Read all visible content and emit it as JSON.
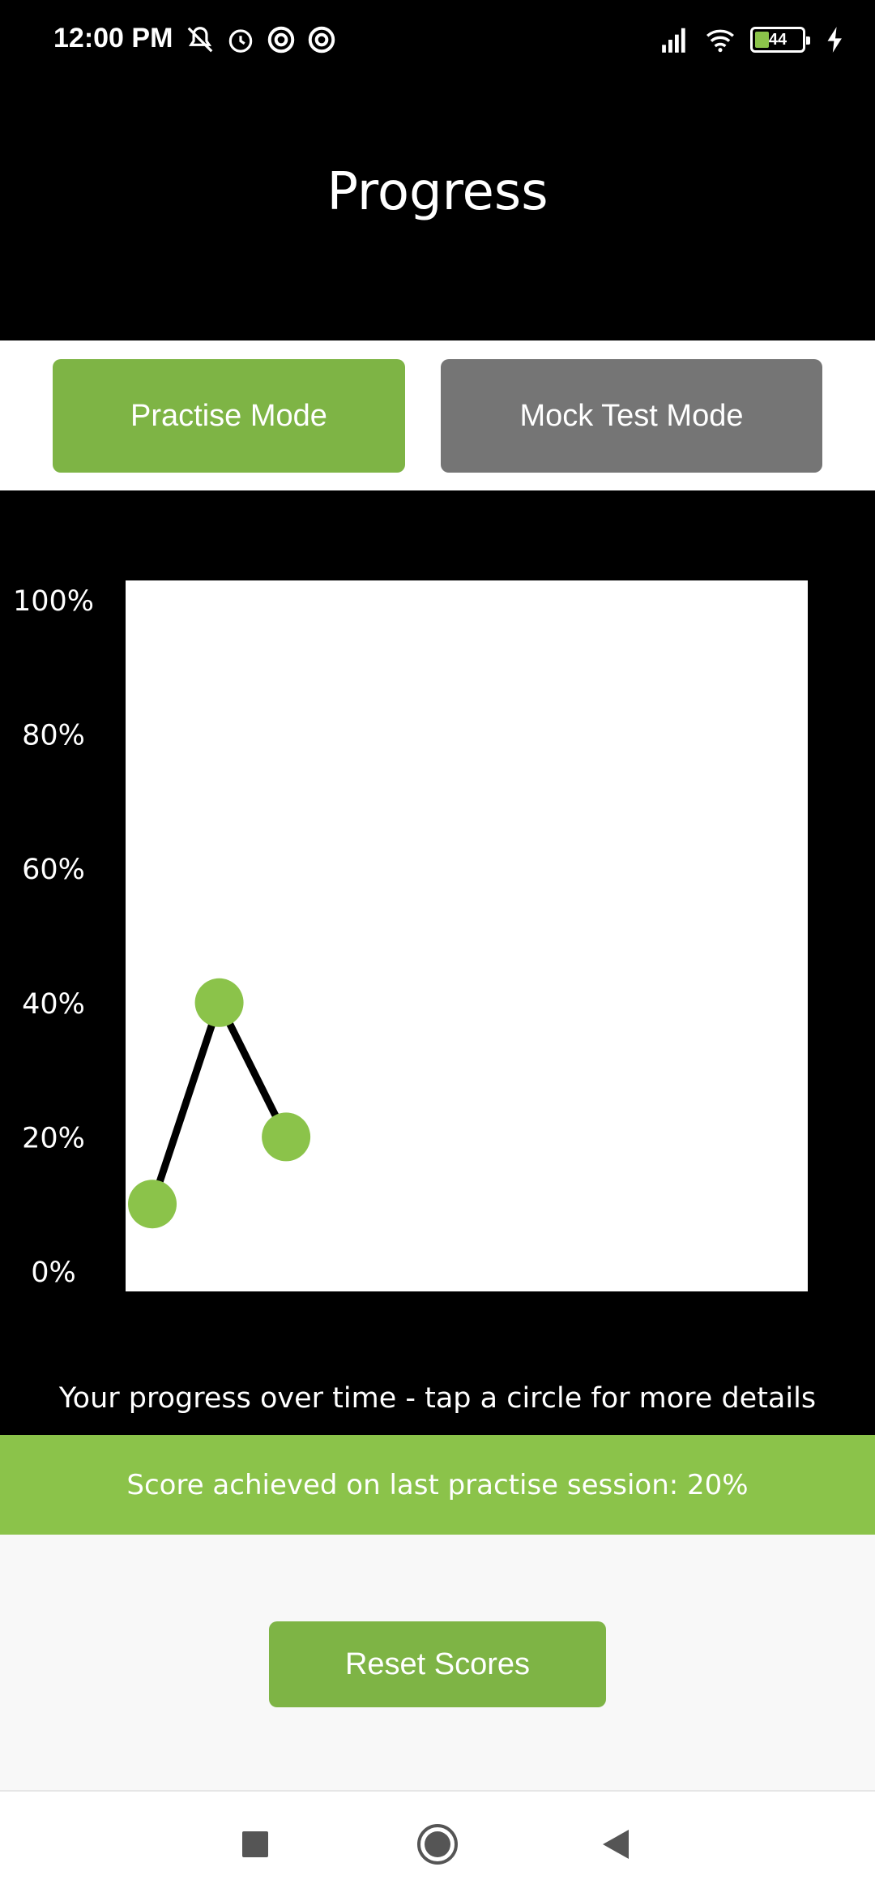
{
  "status_bar": {
    "time": "12:00 PM",
    "battery_level": "44",
    "icons_left": [
      "mute-bell-icon",
      "alarm-icon",
      "sync-icon",
      "sync-icon"
    ],
    "icons_right": [
      "signal-icon",
      "wifi-icon",
      "battery-icon",
      "charging-icon"
    ]
  },
  "header": {
    "title": "Progress"
  },
  "modes": {
    "practise_label": "Practise Mode",
    "mock_label": "Mock Test Mode",
    "selected": "Practise Mode"
  },
  "chart_data": {
    "type": "line",
    "x": [
      1,
      2,
      3
    ],
    "values": [
      10,
      40,
      20
    ],
    "ylim": [
      0,
      100
    ],
    "ytick_labels": [
      "100%",
      "80%",
      "60%",
      "40%",
      "20%",
      "0%"
    ],
    "yticks": [
      100,
      80,
      60,
      40,
      20,
      0
    ],
    "xlim": [
      0.6,
      10.8
    ],
    "point_color": "#8bc34a",
    "line_color": "#000000",
    "plot_background": "#ffffff"
  },
  "caption": "Your progress over time - tap a circle for more details",
  "score_banner": "Score achieved on last practise session: 20%",
  "reset_label": "Reset Scores",
  "colors": {
    "accent": "#7eb445",
    "banner": "#8bc34a",
    "inactive": "#757575"
  },
  "nav": {
    "icons": [
      "recents-square-icon",
      "home-circle-icon",
      "back-triangle-icon"
    ]
  }
}
